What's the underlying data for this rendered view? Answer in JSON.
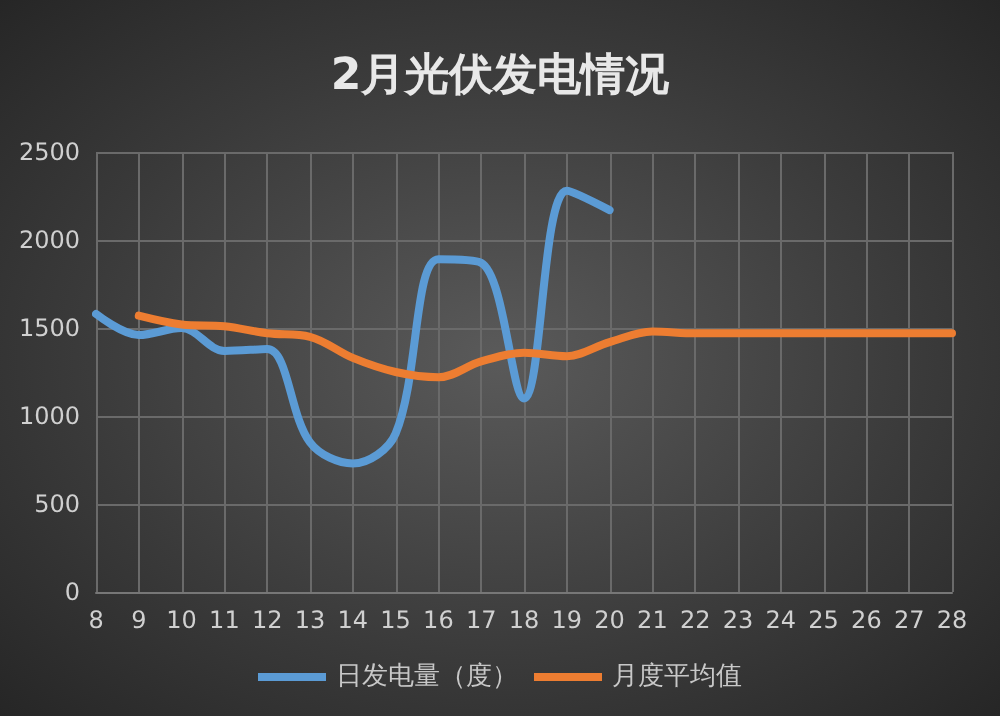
{
  "chart_data": {
    "type": "line",
    "title": "2月光伏发电情况",
    "categories": [
      "8",
      "9",
      "10",
      "11",
      "12",
      "13",
      "14",
      "15",
      "16",
      "17",
      "18",
      "19",
      "20",
      "21",
      "22",
      "23",
      "24",
      "25",
      "26",
      "27",
      "28"
    ],
    "series": [
      {
        "name": "日发电量（度）",
        "color": "#5b9bd5",
        "values": [
          1580,
          1460,
          1500,
          1370,
          1380,
          850,
          730,
          900,
          1890,
          1870,
          1100,
          2280,
          2170,
          null,
          null,
          null,
          null,
          null,
          null,
          null,
          null
        ]
      },
      {
        "name": "月度平均值",
        "color": "#ed7d31",
        "values": [
          null,
          1570,
          1520,
          1510,
          1470,
          1450,
          1330,
          1250,
          1220,
          1310,
          1360,
          1340,
          1420,
          1480,
          1470,
          1470,
          1470,
          1470,
          1470,
          1470,
          1470
        ]
      }
    ],
    "ylim": [
      0,
      2500
    ],
    "yticks": [
      0,
      500,
      1000,
      1500,
      2000,
      2500
    ],
    "grid": true,
    "legend": "bottom",
    "marker": "none",
    "line_style": "solid"
  }
}
